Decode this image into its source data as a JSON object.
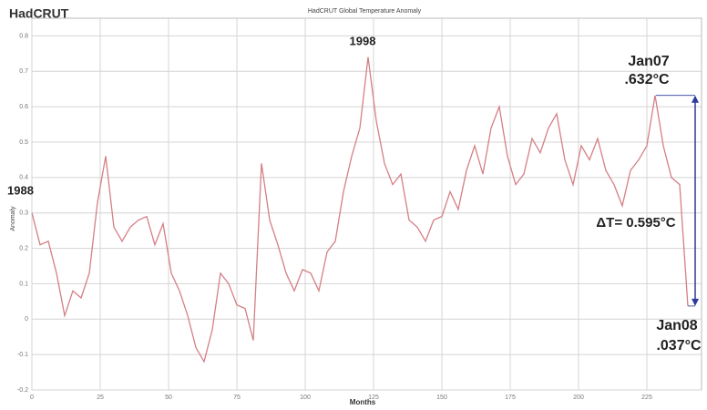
{
  "chart_data": {
    "type": "line",
    "title": "HadCRUT Global Temperature Anomaly",
    "brand": "HadCRUT",
    "x_label": "Months",
    "y_label": "Anomaly",
    "x": [
      0,
      3,
      6,
      9,
      12,
      15,
      18,
      21,
      24,
      27,
      30,
      33,
      36,
      39,
      42,
      45,
      48,
      51,
      54,
      57,
      60,
      63,
      66,
      69,
      72,
      75,
      78,
      81,
      84,
      87,
      90,
      93,
      96,
      99,
      102,
      105,
      108,
      111,
      114,
      117,
      120,
      123,
      126,
      129,
      132,
      135,
      138,
      141,
      144,
      147,
      150,
      153,
      156,
      159,
      162,
      165,
      168,
      171,
      174,
      177,
      180,
      183,
      186,
      189,
      192,
      195,
      198,
      201,
      204,
      207,
      210,
      213,
      216,
      219,
      222,
      225,
      228,
      231,
      234,
      237,
      240
    ],
    "series": [
      {
        "name": "HadCRUT",
        "color": "#d47f85",
        "values": [
          0.3,
          0.21,
          0.22,
          0.13,
          0.01,
          0.08,
          0.06,
          0.13,
          0.33,
          0.46,
          0.26,
          0.22,
          0.26,
          0.28,
          0.29,
          0.21,
          0.27,
          0.13,
          0.08,
          0.01,
          -0.08,
          -0.12,
          -0.03,
          0.13,
          0.1,
          0.04,
          0.03,
          -0.06,
          0.44,
          0.28,
          0.21,
          0.13,
          0.08,
          0.14,
          0.13,
          0.08,
          0.19,
          0.22,
          0.36,
          0.46,
          0.54,
          0.74,
          0.56,
          0.44,
          0.38,
          0.41,
          0.28,
          0.26,
          0.22,
          0.28,
          0.29,
          0.36,
          0.31,
          0.42,
          0.49,
          0.41,
          0.54,
          0.6,
          0.46,
          0.38,
          0.41,
          0.51,
          0.47,
          0.54,
          0.58,
          0.45,
          0.38,
          0.49,
          0.45,
          0.51,
          0.42,
          0.38,
          0.32,
          0.42,
          0.45,
          0.49,
          0.632,
          0.49,
          0.4,
          0.38,
          0.037
        ]
      }
    ],
    "xlim": [
      0,
      245
    ],
    "xticks": [
      0,
      25,
      50,
      75,
      100,
      125,
      150,
      175,
      200,
      225
    ],
    "ylim": [
      -0.2,
      0.85
    ],
    "yticks": [
      -0.2,
      -0.1,
      0,
      0.1,
      0.2,
      0.3,
      0.4,
      0.5,
      0.6,
      0.7,
      0.8
    ],
    "grid": true,
    "annotations": [
      {
        "text": "1988"
      },
      {
        "text": "1998"
      },
      {
        "text": "Jan07"
      },
      {
        "text": ".632°C"
      },
      {
        "text": "Jan08"
      },
      {
        "text": ".037°C"
      },
      {
        "text": "ΔT= 0.595°C"
      }
    ],
    "arrow_color": "#2b3a9c"
  }
}
